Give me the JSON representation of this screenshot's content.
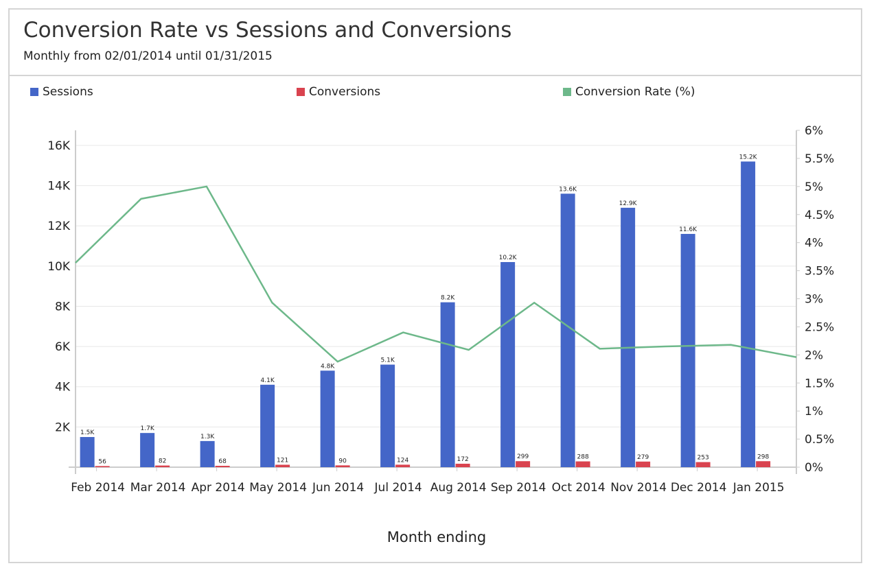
{
  "header": {
    "title": "Conversion Rate vs Sessions and Conversions",
    "subtitle": "Monthly from 02/01/2014 until 01/31/2015"
  },
  "chart_data": {
    "type": "bar",
    "title": "Conversion Rate vs Sessions and Conversions",
    "subtitle": "Monthly from 02/01/2014 until 01/31/2015",
    "xlabel": "Month ending",
    "categories": [
      "Feb 2014",
      "Mar 2014",
      "Apr 2014",
      "May 2014",
      "Jun 2014",
      "Jul 2014",
      "Aug 2014",
      "Sep 2014",
      "Oct 2014",
      "Nov 2014",
      "Dec 2014",
      "Jan 2015"
    ],
    "legend_position": "top",
    "grid": true,
    "y_left": {
      "ticks": [
        "2K",
        "4K",
        "6K",
        "8K",
        "10K",
        "12K",
        "14K",
        "16K"
      ],
      "tick_values": [
        2000,
        4000,
        6000,
        8000,
        10000,
        12000,
        14000,
        16000
      ],
      "range": [
        0,
        16750
      ]
    },
    "y_right": {
      "ticks": [
        "0%",
        "0.5%",
        "1%",
        "1.5%",
        "2%",
        "2.5%",
        "3%",
        "3.5%",
        "4%",
        "4.5%",
        "5%",
        "5.5%",
        "6%"
      ],
      "range": [
        0,
        6
      ]
    },
    "series": [
      {
        "name": "Sessions",
        "type": "bar",
        "axis": "left",
        "color": "#4466c8",
        "values": [
          1500,
          1700,
          1300,
          4100,
          4800,
          5100,
          8200,
          10200,
          13600,
          12900,
          11600,
          15200
        ],
        "labels": [
          "1.5K",
          "1.7K",
          "1.3K",
          "4.1K",
          "4.8K",
          "5.1K",
          "8.2K",
          "10.2K",
          "13.6K",
          "12.9K",
          "11.6K",
          "15.2K"
        ]
      },
      {
        "name": "Conversions",
        "type": "bar",
        "axis": "left",
        "color": "#d9434f",
        "values": [
          56,
          82,
          68,
          121,
          90,
          124,
          172,
          299,
          288,
          279,
          253,
          298
        ],
        "labels": [
          "56",
          "82",
          "68",
          "121",
          "90",
          "124",
          "172",
          "299",
          "288",
          "279",
          "253",
          "298"
        ]
      },
      {
        "name": "Conversion Rate (%)",
        "type": "line",
        "axis": "right",
        "color": "#6db88a",
        "values": [
          3.64,
          4.78,
          5.0,
          2.93,
          1.88,
          2.4,
          2.09,
          2.93,
          2.11,
          2.15,
          2.18,
          1.96
        ]
      }
    ]
  }
}
